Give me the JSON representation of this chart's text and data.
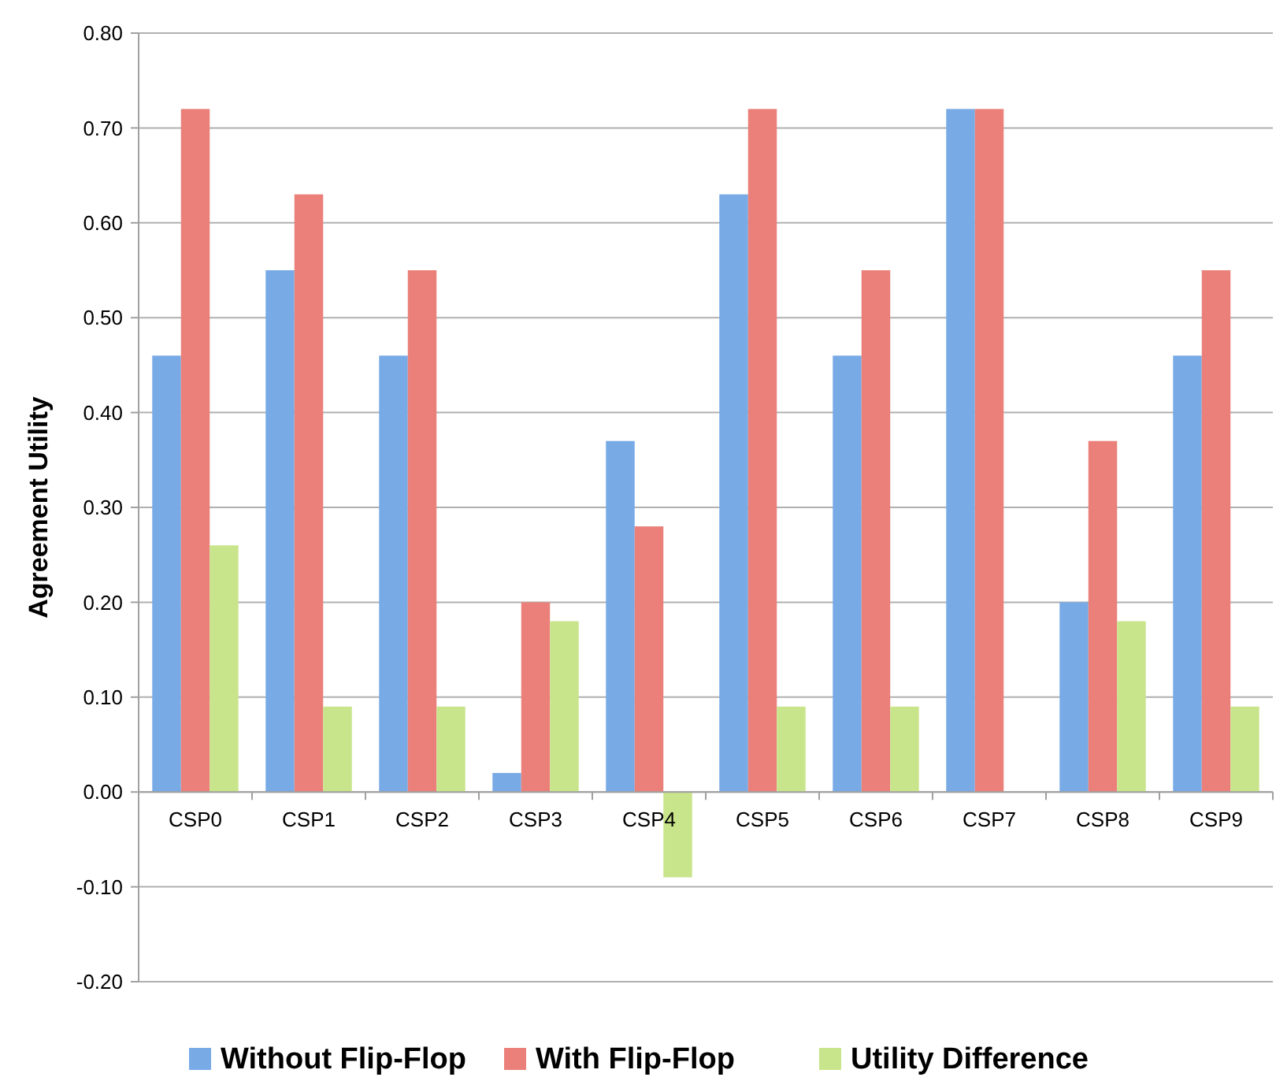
{
  "chart_data": {
    "type": "bar",
    "ylabel": "Agreement Utility",
    "categories": [
      "CSP0",
      "CSP1",
      "CSP2",
      "CSP3",
      "CSP4",
      "CSP5",
      "CSP6",
      "CSP7",
      "CSP8",
      "CSP9"
    ],
    "series": [
      {
        "name": "Without Flip-Flop",
        "color": "#78aae6",
        "values": [
          0.46,
          0.55,
          0.46,
          0.02,
          0.37,
          0.63,
          0.46,
          0.72,
          0.2,
          0.46
        ]
      },
      {
        "name": "With Flip-Flop",
        "color": "#ea8079",
        "values": [
          0.72,
          0.63,
          0.55,
          0.2,
          0.28,
          0.72,
          0.55,
          0.72,
          0.37,
          0.55
        ]
      },
      {
        "name": "Utility Difference",
        "color": "#c9e58c",
        "values": [
          0.26,
          0.09,
          0.09,
          0.18,
          -0.09,
          0.09,
          0.09,
          0,
          0.18,
          0.09
        ]
      }
    ],
    "ylim": [
      -0.2,
      0.8
    ],
    "yticks": [
      {
        "value": -0.2,
        "label": "-0.20"
      },
      {
        "value": -0.1,
        "label": "-0.10"
      },
      {
        "value": 0,
        "label": "0.00"
      },
      {
        "value": 0.1,
        "label": "0.10"
      },
      {
        "value": 0.2,
        "label": "0.20"
      },
      {
        "value": 0.3,
        "label": "0.30"
      },
      {
        "value": 0.4,
        "label": "0.40"
      },
      {
        "value": 0.5,
        "label": "0.50"
      },
      {
        "value": 0.6,
        "label": "0.60"
      },
      {
        "value": 0.7,
        "label": "0.70"
      },
      {
        "value": 0.8,
        "label": "0.80"
      }
    ],
    "grid": "y",
    "legend": "bottom"
  }
}
